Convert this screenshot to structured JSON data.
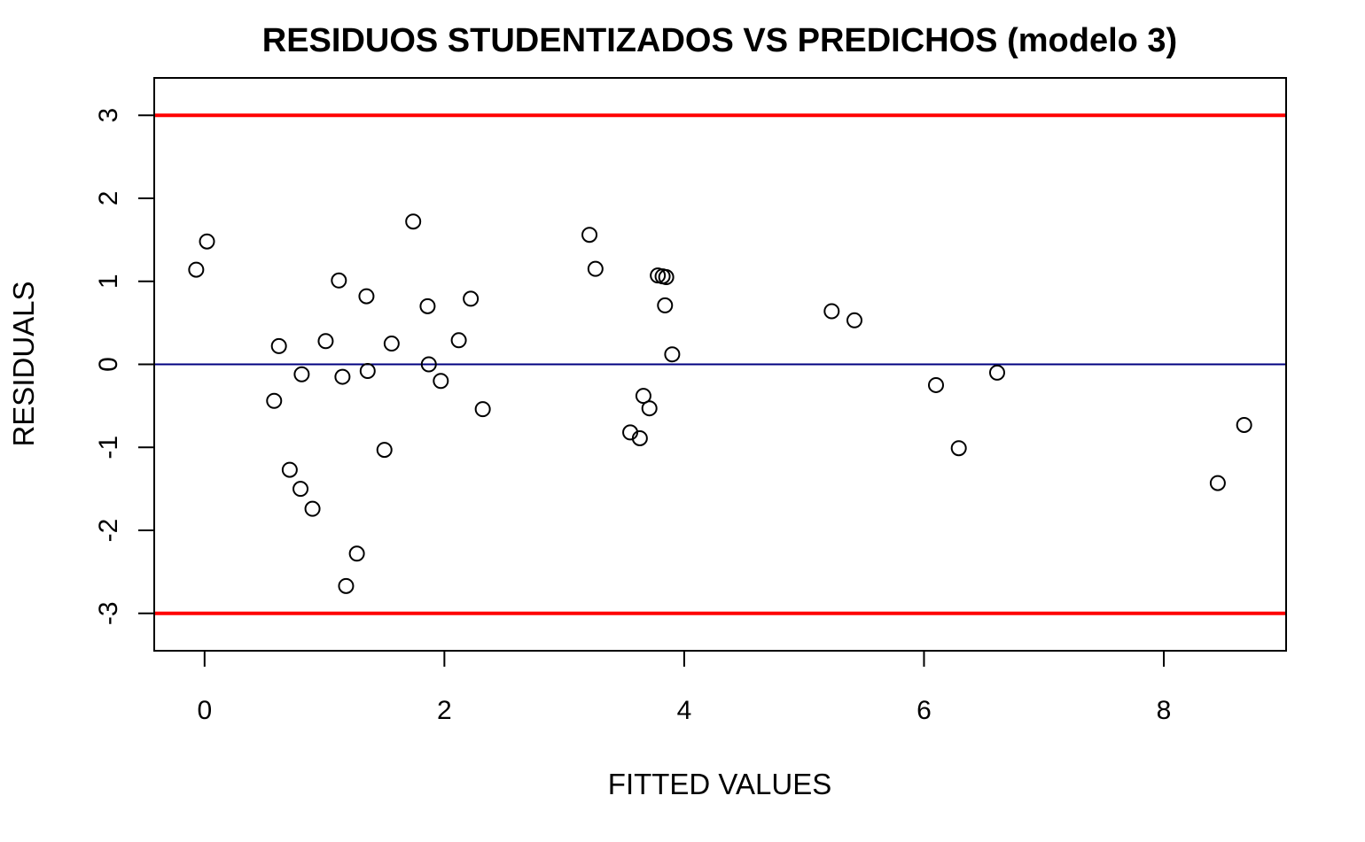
{
  "chart_data": {
    "type": "scatter",
    "title": "RESIDUOS STUDENTIZADOS VS PREDICHOS (modelo 3)",
    "xlabel": "FITTED VALUES",
    "ylabel": "RESIDUALS",
    "xlim": [
      -0.42,
      9.02
    ],
    "ylim": [
      -3.45,
      3.45
    ],
    "x_ticks": [
      0,
      2,
      4,
      6,
      8
    ],
    "x_tick_labels": [
      "0",
      "2",
      "4",
      "6",
      "8"
    ],
    "y_ticks": [
      -3,
      -2,
      -1,
      0,
      1,
      2,
      3
    ],
    "y_tick_labels": [
      "-3",
      "-2",
      "-1",
      "0",
      "1",
      "2",
      "3"
    ],
    "grid": false,
    "reference_lines": [
      {
        "y": 3,
        "color": "#ff0000"
      },
      {
        "y": -3,
        "color": "#ff0000"
      },
      {
        "y": 0,
        "color": "#000080"
      }
    ],
    "points": [
      {
        "x": -0.07,
        "y": 1.14
      },
      {
        "x": 0.02,
        "y": 1.48
      },
      {
        "x": 0.58,
        "y": -0.44
      },
      {
        "x": 0.62,
        "y": 0.22
      },
      {
        "x": 0.71,
        "y": -1.27
      },
      {
        "x": 0.8,
        "y": -1.5
      },
      {
        "x": 0.81,
        "y": -0.12
      },
      {
        "x": 0.9,
        "y": -1.74
      },
      {
        "x": 1.01,
        "y": 0.28
      },
      {
        "x": 1.12,
        "y": 1.01
      },
      {
        "x": 1.15,
        "y": -0.15
      },
      {
        "x": 1.18,
        "y": -2.67
      },
      {
        "x": 1.27,
        "y": -2.28
      },
      {
        "x": 1.35,
        "y": 0.82
      },
      {
        "x": 1.36,
        "y": -0.08
      },
      {
        "x": 1.5,
        "y": -1.03
      },
      {
        "x": 1.56,
        "y": 0.25
      },
      {
        "x": 1.74,
        "y": 1.72
      },
      {
        "x": 1.86,
        "y": 0.7
      },
      {
        "x": 1.87,
        "y": 0.0
      },
      {
        "x": 1.97,
        "y": -0.2
      },
      {
        "x": 2.12,
        "y": 0.29
      },
      {
        "x": 2.22,
        "y": 0.79
      },
      {
        "x": 2.32,
        "y": -0.54
      },
      {
        "x": 3.21,
        "y": 1.56
      },
      {
        "x": 3.26,
        "y": 1.15
      },
      {
        "x": 3.55,
        "y": -0.82
      },
      {
        "x": 3.63,
        "y": -0.89
      },
      {
        "x": 3.66,
        "y": -0.38
      },
      {
        "x": 3.71,
        "y": -0.53
      },
      {
        "x": 3.78,
        "y": 1.07
      },
      {
        "x": 3.82,
        "y": 1.06
      },
      {
        "x": 3.85,
        "y": 1.05
      },
      {
        "x": 3.84,
        "y": 0.71
      },
      {
        "x": 3.9,
        "y": 0.12
      },
      {
        "x": 5.23,
        "y": 0.64
      },
      {
        "x": 5.42,
        "y": 0.53
      },
      {
        "x": 6.1,
        "y": -0.25
      },
      {
        "x": 6.29,
        "y": -1.01
      },
      {
        "x": 6.61,
        "y": -0.1
      },
      {
        "x": 8.45,
        "y": -1.43
      },
      {
        "x": 8.67,
        "y": -0.73
      }
    ]
  }
}
